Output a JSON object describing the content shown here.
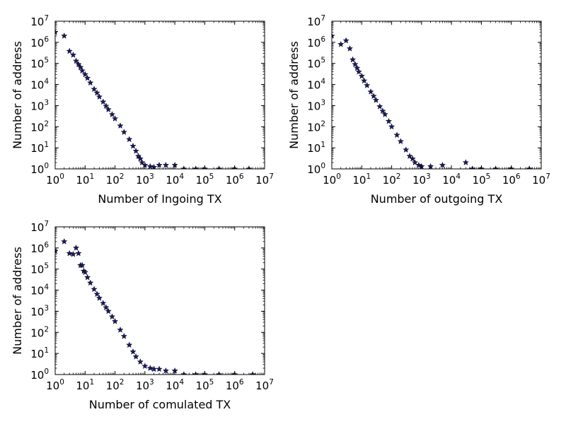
{
  "chart_data": [
    {
      "type": "scatter",
      "xlabel": "Number of Ingoing TX",
      "ylabel": "Number of address",
      "xscale": "log",
      "yscale": "log",
      "xlim": [
        1,
        10000000
      ],
      "ylim": [
        1,
        10000000
      ],
      "x_ticks": [
        1,
        10,
        100,
        1000,
        10000,
        100000,
        1000000,
        10000000
      ],
      "y_ticks": [
        1,
        10,
        100,
        1000,
        10000,
        100000,
        1000000,
        10000000
      ],
      "grid": false,
      "marker": "star",
      "marker_color": "#191970",
      "points": [
        [
          1,
          3000000
        ],
        [
          2,
          2000000
        ],
        [
          3,
          380000
        ],
        [
          4,
          250000
        ],
        [
          5,
          130000
        ],
        [
          6,
          90000
        ],
        [
          7,
          65000
        ],
        [
          8,
          45000
        ],
        [
          10,
          30000
        ],
        [
          12,
          20000
        ],
        [
          15,
          12000
        ],
        [
          20,
          6000
        ],
        [
          25,
          4000
        ],
        [
          30,
          2600
        ],
        [
          40,
          1500
        ],
        [
          50,
          950
        ],
        [
          60,
          650
        ],
        [
          80,
          380
        ],
        [
          100,
          240
        ],
        [
          150,
          110
        ],
        [
          200,
          55
        ],
        [
          300,
          25
        ],
        [
          400,
          12
        ],
        [
          500,
          7
        ],
        [
          600,
          4
        ],
        [
          700,
          3
        ],
        [
          800,
          2
        ],
        [
          1000,
          1.5
        ],
        [
          1500,
          1.3
        ],
        [
          2000,
          1.2
        ],
        [
          3000,
          1.5
        ],
        [
          5000,
          1.5
        ],
        [
          10000,
          1.5
        ],
        [
          20000,
          1
        ],
        [
          50000,
          1
        ],
        [
          100000,
          1
        ],
        [
          300000,
          1
        ],
        [
          1000000,
          1
        ],
        [
          3000000,
          1
        ]
      ]
    },
    {
      "type": "scatter",
      "xlabel": "Number of outgoing TX",
      "ylabel": "Number of address",
      "xscale": "log",
      "yscale": "log",
      "xlim": [
        1,
        10000000
      ],
      "ylim": [
        1,
        10000000
      ],
      "x_ticks": [
        1,
        10,
        100,
        1000,
        10000,
        100000,
        1000000,
        10000000
      ],
      "y_ticks": [
        1,
        10,
        100,
        1000,
        10000,
        100000,
        1000000,
        10000000
      ],
      "grid": false,
      "marker": "star",
      "marker_color": "#191970",
      "points": [
        [
          1,
          2000000
        ],
        [
          2,
          800000
        ],
        [
          3,
          1200000
        ],
        [
          4,
          500000
        ],
        [
          5,
          150000
        ],
        [
          6,
          90000
        ],
        [
          7,
          60000
        ],
        [
          8,
          40000
        ],
        [
          10,
          25000
        ],
        [
          12,
          15000
        ],
        [
          15,
          9000
        ],
        [
          20,
          4500
        ],
        [
          25,
          2800
        ],
        [
          30,
          1800
        ],
        [
          40,
          900
        ],
        [
          50,
          550
        ],
        [
          60,
          380
        ],
        [
          80,
          180
        ],
        [
          100,
          100
        ],
        [
          150,
          40
        ],
        [
          200,
          20
        ],
        [
          300,
          8
        ],
        [
          400,
          4
        ],
        [
          500,
          3
        ],
        [
          600,
          2
        ],
        [
          800,
          1.5
        ],
        [
          1000,
          1.3
        ],
        [
          2000,
          1.3
        ],
        [
          5000,
          1.5
        ],
        [
          30000,
          2
        ],
        [
          50000,
          1
        ],
        [
          100000,
          1
        ],
        [
          300000,
          1
        ],
        [
          1000000,
          1
        ],
        [
          4000000,
          1
        ]
      ]
    },
    {
      "type": "scatter",
      "xlabel": "Number of comulated TX",
      "ylabel": "Number of address",
      "xscale": "log",
      "yscale": "log",
      "xlim": [
        1,
        10000000
      ],
      "ylim": [
        1,
        10000000
      ],
      "x_ticks": [
        1,
        10,
        100,
        1000,
        10000,
        100000,
        1000000,
        10000000
      ],
      "y_ticks": [
        1,
        10,
        100,
        1000,
        10000,
        100000,
        1000000,
        10000000
      ],
      "grid": false,
      "marker": "star",
      "marker_color": "#191970",
      "points": [
        [
          1,
          700000
        ],
        [
          2,
          2000000
        ],
        [
          3,
          550000
        ],
        [
          4,
          500000
        ],
        [
          5,
          1000000
        ],
        [
          6,
          550000
        ],
        [
          7,
          150000
        ],
        [
          8,
          150000
        ],
        [
          9,
          80000
        ],
        [
          10,
          70000
        ],
        [
          12,
          40000
        ],
        [
          15,
          22000
        ],
        [
          20,
          11000
        ],
        [
          25,
          6500
        ],
        [
          30,
          4200
        ],
        [
          40,
          2400
        ],
        [
          50,
          1500
        ],
        [
          60,
          1000
        ],
        [
          80,
          550
        ],
        [
          100,
          330
        ],
        [
          150,
          130
        ],
        [
          200,
          65
        ],
        [
          300,
          25
        ],
        [
          400,
          12
        ],
        [
          500,
          7
        ],
        [
          700,
          4
        ],
        [
          1000,
          2.5
        ],
        [
          1500,
          2
        ],
        [
          2000,
          1.8
        ],
        [
          3000,
          1.8
        ],
        [
          5000,
          1.5
        ],
        [
          10000,
          1.5
        ],
        [
          20000,
          1
        ],
        [
          50000,
          1
        ],
        [
          100000,
          1
        ],
        [
          300000,
          1
        ],
        [
          1000000,
          1
        ],
        [
          4000000,
          1
        ]
      ]
    }
  ]
}
